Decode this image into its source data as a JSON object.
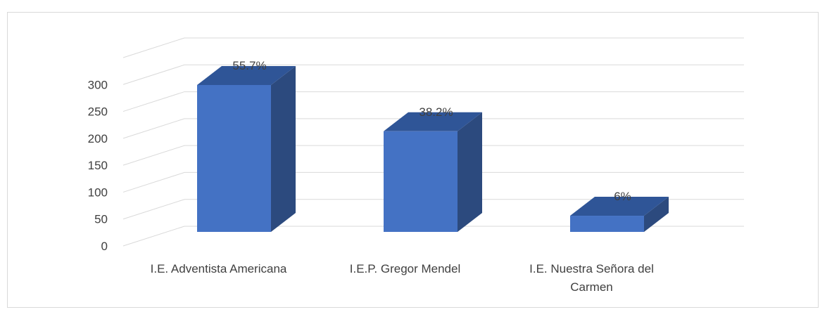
{
  "chart_data": {
    "type": "bar3d",
    "categories": [
      "I.E. Adventista Americana",
      "I.E.P. Gregor Mendel",
      "I.E. Nuestra Señora del Carmen"
    ],
    "values": [
      273,
      187,
      30
    ],
    "value_labels": [
      "55.7%",
      "38.2%",
      "6%"
    ],
    "color": "#4472c4",
    "ylim": [
      0,
      350
    ],
    "yticks": [
      0,
      50,
      100,
      150,
      200,
      250,
      300
    ],
    "grid": true
  }
}
